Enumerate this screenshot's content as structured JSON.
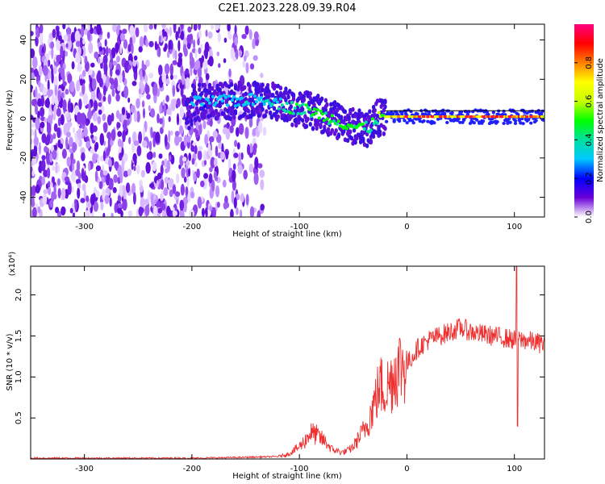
{
  "title": "C2E1.2023.228.09.39.R04",
  "chart_data": [
    {
      "type": "heatmap",
      "xlabel": "Height of straight line (km)",
      "ylabel": "Frequency (Hz)",
      "xlim": [
        -350,
        128
      ],
      "ylim": [
        -50,
        48
      ],
      "xticks": [
        -300,
        -200,
        -100,
        0,
        100
      ],
      "yticks": [
        -40,
        -20,
        0,
        20,
        40
      ],
      "colorbar": {
        "label": "Normalized spectral amplitude",
        "range": [
          0,
          1
        ],
        "ticks": [
          "0.0",
          "0.2",
          "0.4",
          "0.6",
          "0.8"
        ],
        "colors": [
          "#ffffff",
          "#6a00d8",
          "#0000ff",
          "#00c8ff",
          "#00e0a0",
          "#00ff00",
          "#c8ff00",
          "#ffff00",
          "#ff8000",
          "#ff0000",
          "#ff0080"
        ]
      },
      "ridge": [
        {
          "x": -200,
          "y": 8,
          "amp": 0.25
        },
        {
          "x": -130,
          "y": 10,
          "amp": 0.3
        },
        {
          "x": -110,
          "y": 6,
          "amp": 0.4
        },
        {
          "x": -90,
          "y": 4,
          "amp": 0.45
        },
        {
          "x": -70,
          "y": 0,
          "amp": 0.45
        },
        {
          "x": -50,
          "y": -4,
          "amp": 0.45
        },
        {
          "x": -35,
          "y": -5,
          "amp": 0.4
        },
        {
          "x": -30,
          "y": 0,
          "amp": 0.45
        },
        {
          "x": -20,
          "y": 1,
          "amp": 0.6
        },
        {
          "x": 0,
          "y": 1,
          "amp": 0.75
        },
        {
          "x": 40,
          "y": 1,
          "amp": 0.75
        },
        {
          "x": 80,
          "y": 1,
          "amp": 0.8
        },
        {
          "x": 128,
          "y": 1,
          "amp": 0.75
        }
      ]
    },
    {
      "type": "line",
      "xlabel": "Height of straight line (km)",
      "ylabel": "SNR (10 * v/v)",
      "multiplier": "(x10⁴)",
      "xlim": [
        -350,
        128
      ],
      "ylim": [
        0,
        2.35
      ],
      "xticks": [
        -300,
        -200,
        -100,
        0,
        100
      ],
      "yticks": [
        0.5,
        1.0,
        1.5,
        2.0
      ],
      "series": [
        {
          "color": "#ee3030",
          "x": [
            -350,
            -300,
            -250,
            -200,
            -150,
            -120,
            -110,
            -100,
            -95,
            -90,
            -85,
            -80,
            -75,
            -70,
            -65,
            -60,
            -55,
            -50,
            -45,
            -40,
            -35,
            -30,
            -25,
            -20,
            -15,
            -10,
            -5,
            0,
            5,
            10,
            20,
            30,
            40,
            50,
            60,
            70,
            80,
            90,
            100,
            110,
            120,
            128
          ],
          "y": [
            0.01,
            0.01,
            0.01,
            0.01,
            0.02,
            0.03,
            0.06,
            0.15,
            0.22,
            0.32,
            0.3,
            0.25,
            0.2,
            0.12,
            0.1,
            0.08,
            0.1,
            0.15,
            0.25,
            0.35,
            0.5,
            0.7,
            0.9,
            0.85,
            0.95,
            1.1,
            1.15,
            1.15,
            1.25,
            1.35,
            1.45,
            1.5,
            1.55,
            1.6,
            1.55,
            1.52,
            1.5,
            1.48,
            1.45,
            1.45,
            1.42,
            1.4
          ]
        }
      ]
    }
  ]
}
